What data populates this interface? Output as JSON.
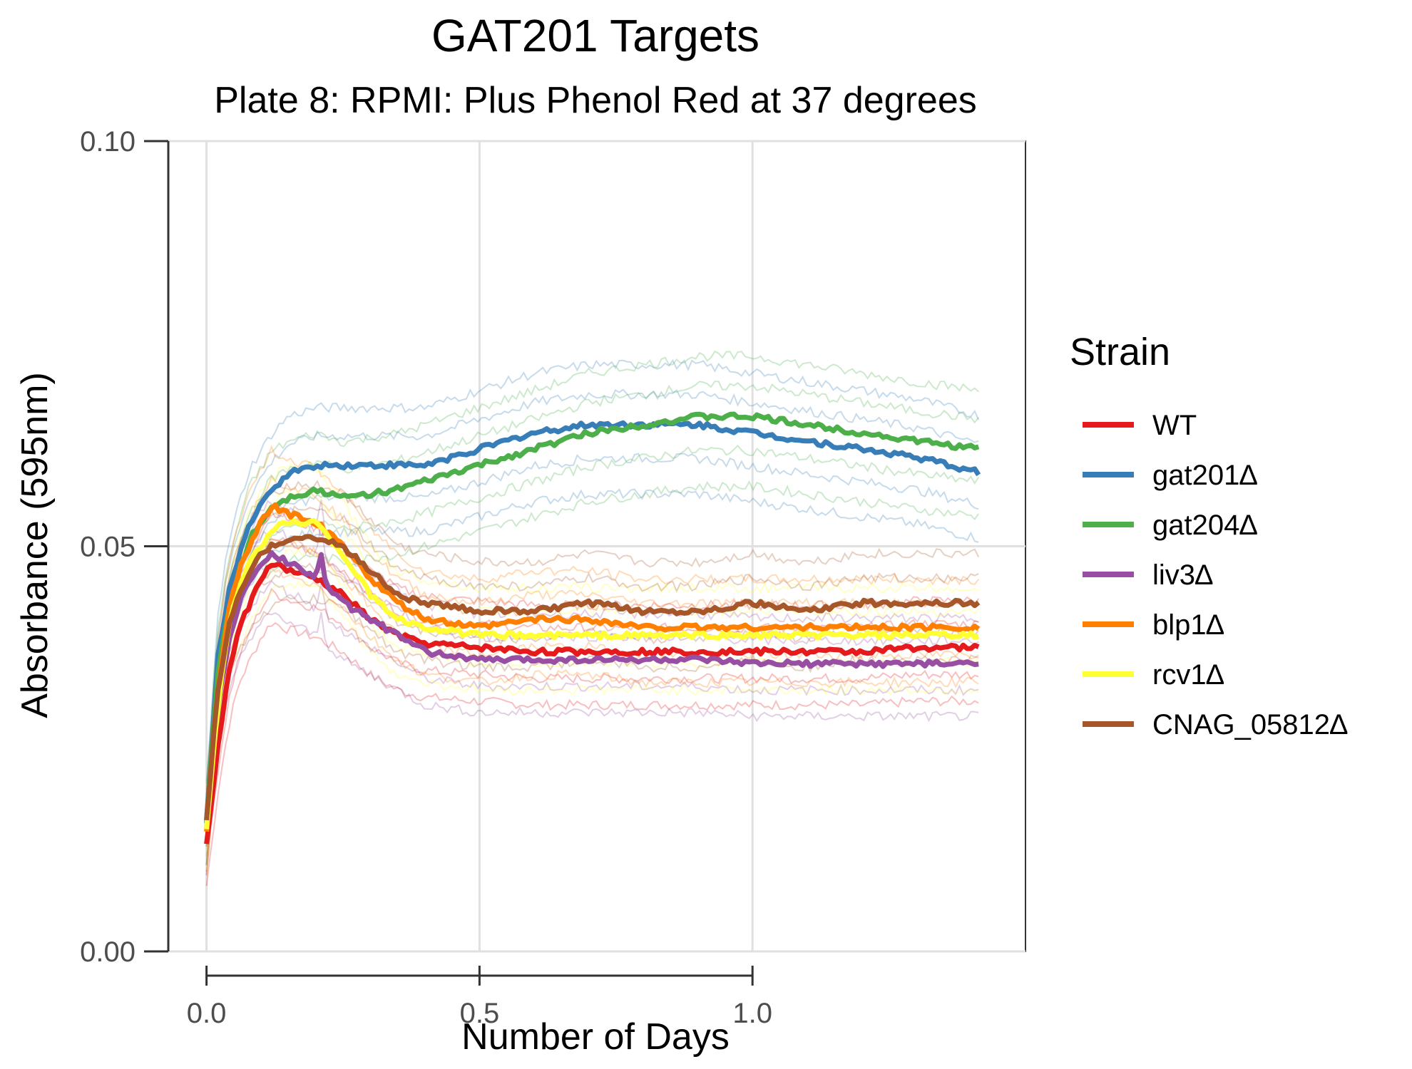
{
  "chart_data": {
    "type": "line",
    "title": "GAT201 Targets",
    "subtitle": "Plate 8: RPMI: Plus Phenol Red at 37 degrees",
    "xlabel": "Number of Days",
    "ylabel": "Absorbance (595nm)",
    "xlim": [
      -0.07,
      1.5
    ],
    "ylim": [
      0.0,
      0.1
    ],
    "xticks": [
      0.0,
      0.5,
      1.0
    ],
    "xtick_labels": [
      "0.0",
      "0.5",
      "1.0"
    ],
    "yticks": [
      0.0,
      0.05,
      0.1
    ],
    "ytick_labels": [
      "0.00",
      "0.05",
      "0.10"
    ],
    "grid": true,
    "legend": {
      "title": "Strain",
      "position": "right"
    },
    "series": [
      {
        "name": "WT",
        "color": "#e41a1c",
        "points": [
          [
            0,
            0.013
          ],
          [
            0.02,
            0.025
          ],
          [
            0.04,
            0.034
          ],
          [
            0.06,
            0.04
          ],
          [
            0.08,
            0.043
          ],
          [
            0.1,
            0.046
          ],
          [
            0.12,
            0.048
          ],
          [
            0.15,
            0.047
          ],
          [
            0.2,
            0.046
          ],
          [
            0.25,
            0.044
          ],
          [
            0.3,
            0.041
          ],
          [
            0.35,
            0.039
          ],
          [
            0.4,
            0.038
          ],
          [
            0.5,
            0.0375
          ],
          [
            0.6,
            0.037
          ],
          [
            0.7,
            0.037
          ],
          [
            0.8,
            0.037
          ],
          [
            0.9,
            0.037
          ],
          [
            1.0,
            0.037
          ],
          [
            1.1,
            0.037
          ],
          [
            1.2,
            0.037
          ],
          [
            1.3,
            0.0375
          ],
          [
            1.42,
            0.0375
          ]
        ]
      },
      {
        "name": "gat201∆",
        "color": "#377eb8",
        "points": [
          [
            0,
            0.016
          ],
          [
            0.02,
            0.036
          ],
          [
            0.04,
            0.044
          ],
          [
            0.06,
            0.049
          ],
          [
            0.08,
            0.053
          ],
          [
            0.1,
            0.055
          ],
          [
            0.12,
            0.057
          ],
          [
            0.15,
            0.059
          ],
          [
            0.2,
            0.06
          ],
          [
            0.25,
            0.06
          ],
          [
            0.3,
            0.06
          ],
          [
            0.35,
            0.06
          ],
          [
            0.4,
            0.06
          ],
          [
            0.5,
            0.062
          ],
          [
            0.6,
            0.064
          ],
          [
            0.7,
            0.065
          ],
          [
            0.8,
            0.065
          ],
          [
            0.9,
            0.065
          ],
          [
            1.0,
            0.064
          ],
          [
            1.1,
            0.063
          ],
          [
            1.2,
            0.062
          ],
          [
            1.3,
            0.061
          ],
          [
            1.42,
            0.059
          ]
        ]
      },
      {
        "name": "gat204∆",
        "color": "#4daf4a",
        "points": [
          [
            0,
            0.016
          ],
          [
            0.02,
            0.034
          ],
          [
            0.04,
            0.042
          ],
          [
            0.06,
            0.047
          ],
          [
            0.08,
            0.051
          ],
          [
            0.1,
            0.053
          ],
          [
            0.12,
            0.055
          ],
          [
            0.15,
            0.056
          ],
          [
            0.2,
            0.057
          ],
          [
            0.25,
            0.056
          ],
          [
            0.3,
            0.0565
          ],
          [
            0.35,
            0.057
          ],
          [
            0.4,
            0.058
          ],
          [
            0.5,
            0.06
          ],
          [
            0.6,
            0.062
          ],
          [
            0.7,
            0.064
          ],
          [
            0.8,
            0.065
          ],
          [
            0.9,
            0.066
          ],
          [
            1.0,
            0.066
          ],
          [
            1.1,
            0.065
          ],
          [
            1.2,
            0.064
          ],
          [
            1.3,
            0.063
          ],
          [
            1.42,
            0.062
          ]
        ]
      },
      {
        "name": "liv3∆",
        "color": "#984ea3",
        "points": [
          [
            0,
            0.015
          ],
          [
            0.02,
            0.03
          ],
          [
            0.04,
            0.038
          ],
          [
            0.06,
            0.043
          ],
          [
            0.08,
            0.046
          ],
          [
            0.1,
            0.048
          ],
          [
            0.12,
            0.049
          ],
          [
            0.15,
            0.048
          ],
          [
            0.18,
            0.047
          ],
          [
            0.2,
            0.046
          ],
          [
            0.21,
            0.049
          ],
          [
            0.22,
            0.045
          ],
          [
            0.25,
            0.043
          ],
          [
            0.3,
            0.041
          ],
          [
            0.35,
            0.039
          ],
          [
            0.4,
            0.037
          ],
          [
            0.5,
            0.036
          ],
          [
            0.6,
            0.036
          ],
          [
            0.7,
            0.036
          ],
          [
            0.8,
            0.036
          ],
          [
            0.9,
            0.036
          ],
          [
            1.0,
            0.0355
          ],
          [
            1.1,
            0.0355
          ],
          [
            1.2,
            0.0355
          ],
          [
            1.3,
            0.0355
          ],
          [
            1.42,
            0.0355
          ]
        ]
      },
      {
        "name": "blp1∆",
        "color": "#ff7f00",
        "points": [
          [
            0,
            0.015
          ],
          [
            0.02,
            0.032
          ],
          [
            0.04,
            0.042
          ],
          [
            0.06,
            0.047
          ],
          [
            0.08,
            0.05
          ],
          [
            0.1,
            0.053
          ],
          [
            0.12,
            0.055
          ],
          [
            0.15,
            0.054
          ],
          [
            0.2,
            0.053
          ],
          [
            0.25,
            0.05
          ],
          [
            0.3,
            0.046
          ],
          [
            0.35,
            0.043
          ],
          [
            0.4,
            0.041
          ],
          [
            0.5,
            0.04
          ],
          [
            0.6,
            0.041
          ],
          [
            0.7,
            0.041
          ],
          [
            0.8,
            0.04
          ],
          [
            0.9,
            0.04
          ],
          [
            1.0,
            0.04
          ],
          [
            1.1,
            0.04
          ],
          [
            1.2,
            0.04
          ],
          [
            1.3,
            0.04
          ],
          [
            1.42,
            0.04
          ]
        ]
      },
      {
        "name": "rcv1∆",
        "color": "#ffff33",
        "points": [
          [
            0,
            0.015
          ],
          [
            0.02,
            0.03
          ],
          [
            0.04,
            0.04
          ],
          [
            0.06,
            0.045
          ],
          [
            0.08,
            0.048
          ],
          [
            0.1,
            0.05
          ],
          [
            0.12,
            0.052
          ],
          [
            0.15,
            0.053
          ],
          [
            0.2,
            0.053
          ],
          [
            0.25,
            0.049
          ],
          [
            0.3,
            0.044
          ],
          [
            0.35,
            0.041
          ],
          [
            0.4,
            0.04
          ],
          [
            0.5,
            0.039
          ],
          [
            0.6,
            0.039
          ],
          [
            0.7,
            0.039
          ],
          [
            0.8,
            0.039
          ],
          [
            0.9,
            0.039
          ],
          [
            1.0,
            0.039
          ],
          [
            1.1,
            0.039
          ],
          [
            1.2,
            0.039
          ],
          [
            1.3,
            0.039
          ],
          [
            1.42,
            0.039
          ]
        ]
      },
      {
        "name": "CNAG_05812∆",
        "color": "#a65628",
        "points": [
          [
            0,
            0.016
          ],
          [
            0.02,
            0.032
          ],
          [
            0.04,
            0.04
          ],
          [
            0.06,
            0.044
          ],
          [
            0.08,
            0.047
          ],
          [
            0.1,
            0.049
          ],
          [
            0.12,
            0.05
          ],
          [
            0.15,
            0.051
          ],
          [
            0.2,
            0.051
          ],
          [
            0.25,
            0.05
          ],
          [
            0.3,
            0.047
          ],
          [
            0.35,
            0.044
          ],
          [
            0.4,
            0.043
          ],
          [
            0.5,
            0.042
          ],
          [
            0.6,
            0.042
          ],
          [
            0.7,
            0.043
          ],
          [
            0.8,
            0.042
          ],
          [
            0.9,
            0.042
          ],
          [
            1.0,
            0.043
          ],
          [
            1.1,
            0.042
          ],
          [
            1.2,
            0.043
          ],
          [
            1.3,
            0.043
          ],
          [
            1.42,
            0.043
          ]
        ]
      }
    ]
  }
}
